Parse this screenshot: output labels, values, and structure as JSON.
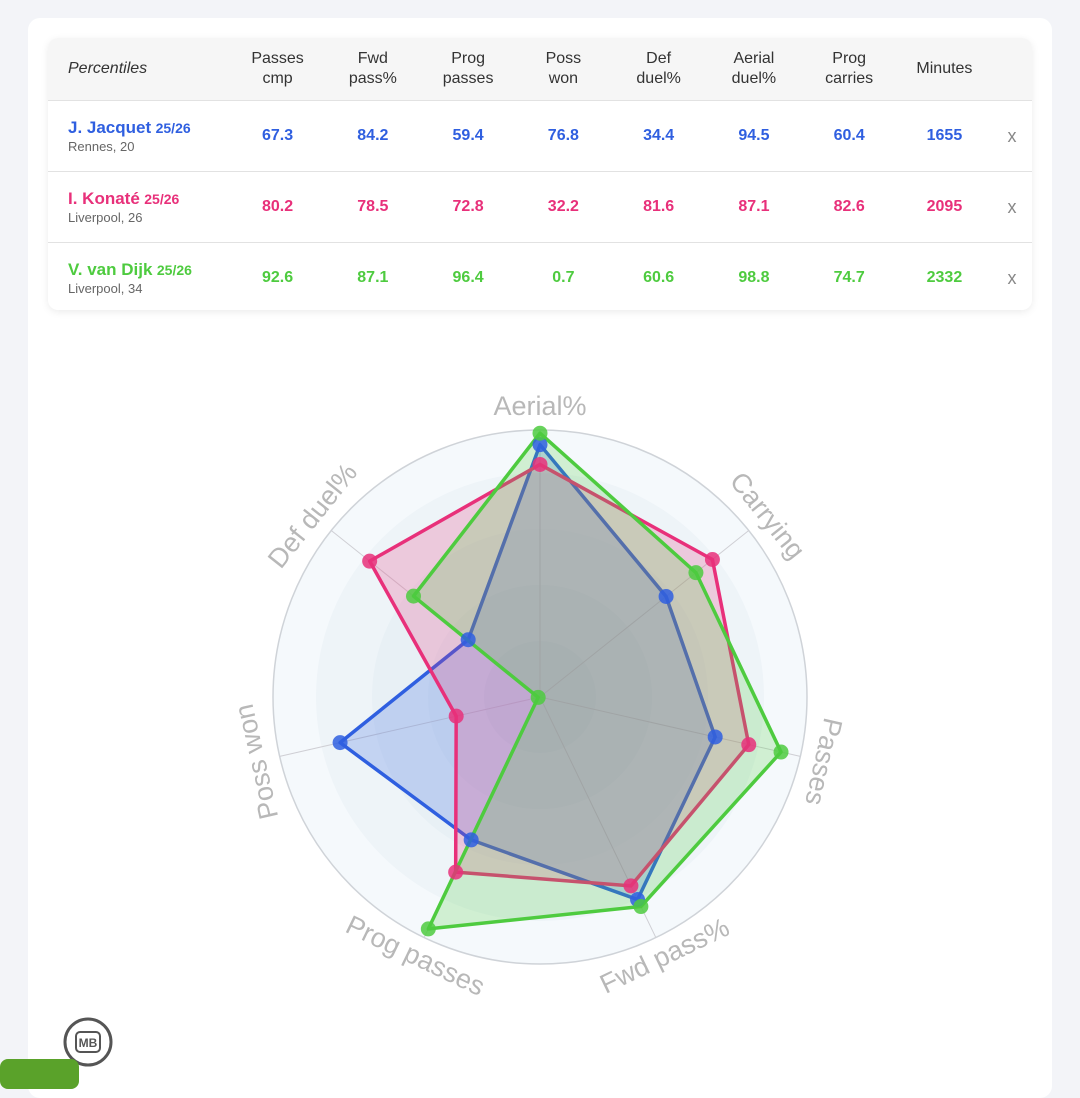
{
  "table": {
    "corner": "Percentiles",
    "headers": [
      [
        "Passes",
        "cmp"
      ],
      [
        "Fwd",
        "pass%"
      ],
      [
        "Prog",
        "passes"
      ],
      [
        "Poss",
        "won"
      ],
      [
        "Def",
        "duel%"
      ],
      [
        "Aerial",
        "duel%"
      ],
      [
        "Prog",
        "carries"
      ],
      [
        "Minutes",
        ""
      ]
    ],
    "remove_label": "x",
    "players": [
      {
        "name": "J. Jacquet",
        "season": "25/26",
        "club": "Rennes, 20",
        "color": "#2f5fe0",
        "values": [
          "67.3",
          "84.2",
          "59.4",
          "76.8",
          "34.4",
          "94.5",
          "60.4",
          "1655"
        ]
      },
      {
        "name": "I. Konaté",
        "season": "25/26",
        "club": "Liverpool, 26",
        "color": "#e8307a",
        "values": [
          "80.2",
          "78.5",
          "72.8",
          "32.2",
          "81.6",
          "87.1",
          "82.6",
          "2095"
        ]
      },
      {
        "name": "V. van Dijk",
        "season": "25/26",
        "club": "Liverpool, 34",
        "color": "#4ecb3f",
        "values": [
          "92.6",
          "87.1",
          "96.4",
          "0.7",
          "60.6",
          "98.8",
          "74.7",
          "2332"
        ]
      }
    ]
  },
  "chart_data": {
    "type": "radar",
    "axes": [
      "Aerial%",
      "Carrying",
      "Passes",
      "Fwd pass%",
      "Prog passes",
      "Poss won",
      "Def duel%"
    ],
    "range": [
      0,
      100
    ],
    "series": [
      {
        "name": "J. Jacquet",
        "color": "#2f5fe0",
        "values": [
          94.5,
          60.4,
          67.3,
          84.2,
          59.4,
          76.8,
          34.4
        ]
      },
      {
        "name": "I. Konaté",
        "color": "#e8307a",
        "values": [
          87.1,
          82.6,
          80.2,
          78.5,
          72.8,
          32.2,
          81.6
        ]
      },
      {
        "name": "V. van Dijk",
        "color": "#4ecb3f",
        "values": [
          98.8,
          74.7,
          92.6,
          87.1,
          96.4,
          0.7,
          60.6
        ]
      }
    ]
  },
  "logo": {
    "text": "MB"
  }
}
